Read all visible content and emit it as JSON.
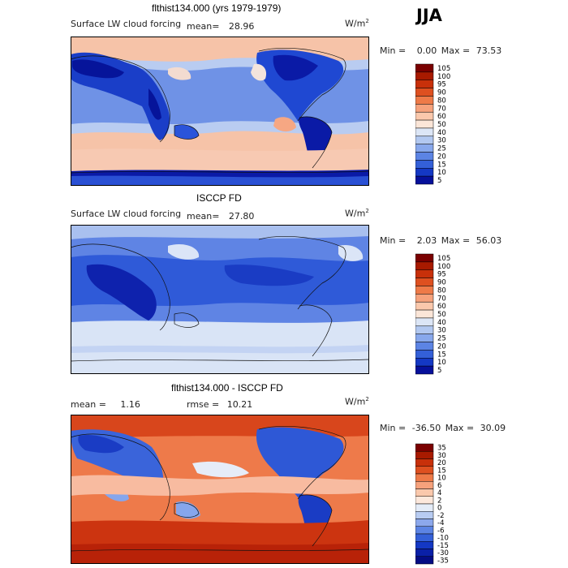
{
  "season": "JJA",
  "unit_base": "W/m",
  "unit_exp": "2",
  "panels": [
    {
      "title": "flthist134.000 (yrs 1979-1979)",
      "variable": "Surface LW cloud forcing",
      "mean_label": "mean=",
      "mean_value": "28.96",
      "min_label": "Min =",
      "min_value": "0.00",
      "max_label": "Max =",
      "max_value": "73.53",
      "levels": [
        "105",
        "100",
        "95",
        "90",
        "80",
        "70",
        "60",
        "50",
        "40",
        "30",
        "25",
        "20",
        "15",
        "10",
        "5"
      ]
    },
    {
      "title": "ISCCP FD",
      "variable": "Surface LW cloud forcing",
      "mean_label": "mean=",
      "mean_value": "27.80",
      "min_label": "Min =",
      "min_value": "2.03",
      "max_label": "Max =",
      "max_value": "56.03",
      "levels": [
        "105",
        "100",
        "95",
        "90",
        "80",
        "70",
        "60",
        "50",
        "40",
        "30",
        "25",
        "20",
        "15",
        "10",
        "5"
      ]
    },
    {
      "title": "flthist134.000 - ISCCP FD",
      "mean_label": "mean =",
      "mean_value": "1.16",
      "rmse_label": "rmse =",
      "rmse_value": "10.21",
      "min_label": "Min =",
      "min_value": "-36.50",
      "max_label": "Max =",
      "max_value": "30.09",
      "levels": [
        "35",
        "30",
        "20",
        "15",
        "10",
        "6",
        "4",
        "2",
        "0",
        "-2",
        "-4",
        "-6",
        "-10",
        "-15",
        "-30",
        "-35"
      ]
    }
  ],
  "colors": {
    "abs_scale": [
      "#7a0000",
      "#a81a00",
      "#c8300a",
      "#de5020",
      "#ee7a48",
      "#f6a27c",
      "#fac8ac",
      "#fbe6d8",
      "#dce6f6",
      "#b2c8f0",
      "#88a8ec",
      "#5c84e4",
      "#3460d8",
      "#1438c4",
      "#06109a"
    ],
    "diff_scale": [
      "#7a0000",
      "#a81a00",
      "#c8300a",
      "#de5020",
      "#ee7a48",
      "#f6a27c",
      "#fac8ac",
      "#fce8dc",
      "#e4ecf8",
      "#b8ccf2",
      "#8ca8ec",
      "#5c84e4",
      "#3460d8",
      "#1438c4",
      "#0a20a8",
      "#040c84"
    ]
  }
}
